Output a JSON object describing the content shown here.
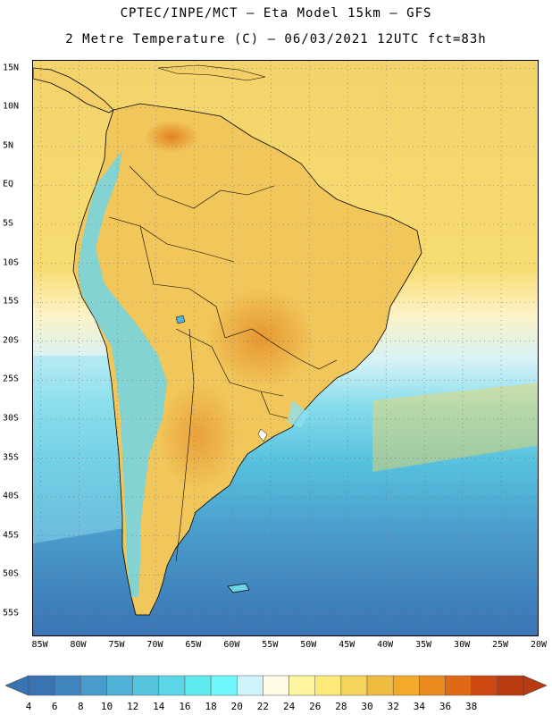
{
  "header": {
    "line1": "CPTEC/INPE/MCT –  Eta Model 15km – GFS",
    "line2": "2 Metre Temperature (C) – 06/03/2021 12UTC fct=83h"
  },
  "map": {
    "lat_ticks": [
      "15N",
      "10N",
      "5N",
      "EQ",
      "5S",
      "10S",
      "15S",
      "20S",
      "25S",
      "30S",
      "35S",
      "40S",
      "45S",
      "50S",
      "55S"
    ],
    "lon_ticks": [
      "85W",
      "80W",
      "75W",
      "70W",
      "65W",
      "60W",
      "55W",
      "50W",
      "45W",
      "40W",
      "35W",
      "30W",
      "25W",
      "20W"
    ],
    "lat_range": [
      16,
      -58
    ],
    "lon_range": [
      -86,
      -20
    ],
    "grid": "dotted"
  },
  "colorbar": {
    "labels": [
      "4",
      "6",
      "8",
      "10",
      "12",
      "14",
      "16",
      "18",
      "20",
      "22",
      "24",
      "26",
      "28",
      "30",
      "32",
      "34",
      "36",
      "38"
    ],
    "colors": [
      "#3a73b4",
      "#3f86c1",
      "#4a9ccc",
      "#4eb3d6",
      "#55c6dd",
      "#5ad6e6",
      "#60ebf0",
      "#6ff8fb",
      "#d0f4fb",
      "#fffbe6",
      "#fff6a0",
      "#fde97a",
      "#f6d45a",
      "#efbb40",
      "#f3a92a",
      "#ea8a1e",
      "#df6915",
      "#cd4712",
      "#b73a10"
    ],
    "low_arrow": "#3a73b4",
    "high_arrow": "#b73a10"
  }
}
